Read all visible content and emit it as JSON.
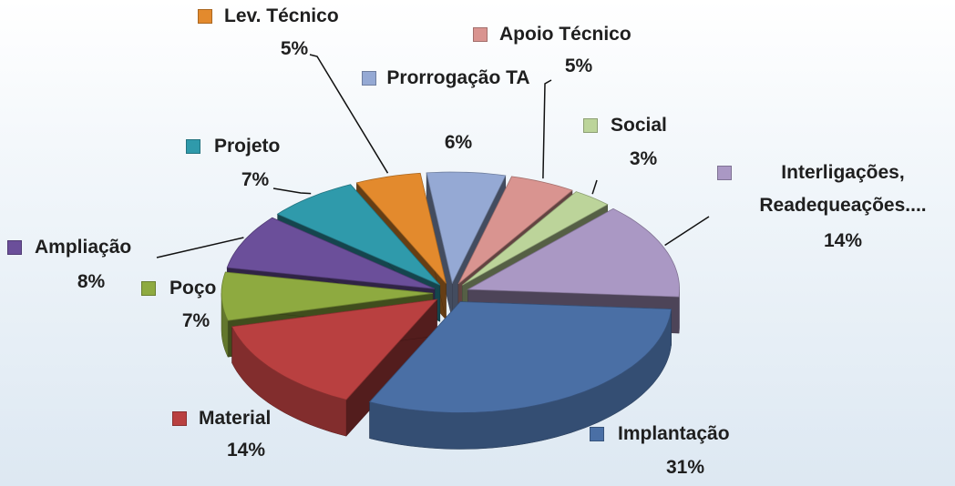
{
  "chart_data": {
    "type": "pie",
    "categories": [
      "Prorrogação TA",
      "Apoio Técnico",
      "Social",
      "Interligações, Readequeações....",
      "Implantação",
      "Material",
      "Poço",
      "Ampliação",
      "Projeto",
      "Lev. Técnico"
    ],
    "values": [
      6,
      5,
      3,
      14,
      31,
      14,
      7,
      8,
      7,
      5
    ],
    "value_labels": [
      "6%",
      "5%",
      "3%",
      "14%",
      "31%",
      "14%",
      "7%",
      "8%",
      "7%",
      "5%"
    ],
    "colors": [
      "#95a9d4",
      "#d99490",
      "#bcd49a",
      "#aa98c4",
      "#4a6fa5",
      "#b94040",
      "#8eaa40",
      "#6b4f9a",
      "#2f9aab",
      "#e38a2d"
    ]
  }
}
